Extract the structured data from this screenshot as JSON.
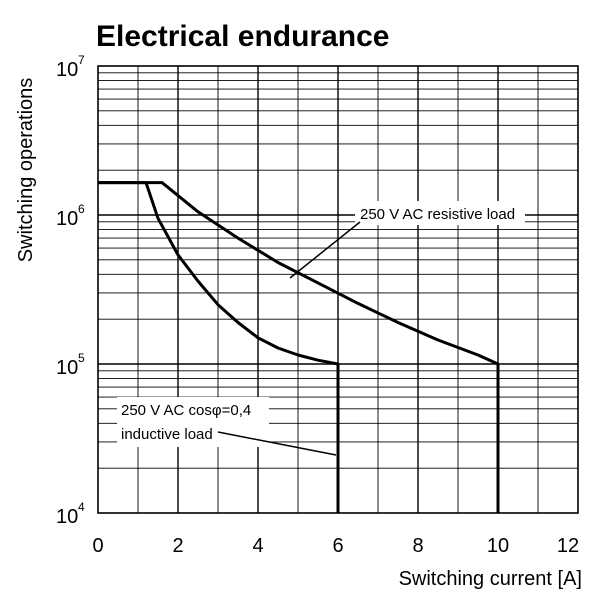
{
  "chart_data": {
    "type": "line",
    "title": "Electrical endurance",
    "xlabel": "Switching current [A]",
    "ylabel": "Switching operations",
    "xlim": [
      0,
      12
    ],
    "ylim": [
      10000,
      10000000
    ],
    "yscale": "log",
    "grid": true,
    "x_ticks": [
      "0",
      "2",
      "4",
      "6",
      "8",
      "10",
      "12"
    ],
    "y_ticks": [
      {
        "base": "10",
        "exp": "4"
      },
      {
        "base": "10",
        "exp": "5"
      },
      {
        "base": "10",
        "exp": "6"
      },
      {
        "base": "10",
        "exp": "7"
      }
    ],
    "series": [
      {
        "name": "250 V AC resistive load",
        "x": [
          0,
          1.6,
          2.5,
          3.5,
          4.5,
          5.5,
          6.5,
          7.5,
          8.5,
          9.5,
          10,
          10
        ],
        "y": [
          1650000,
          1650000,
          1050000,
          700000,
          480000,
          350000,
          255000,
          190000,
          145000,
          115000,
          100000,
          10000
        ]
      },
      {
        "name": "250 V AC cosφ=0,4 inductive load",
        "x": [
          0,
          1.2,
          1.5,
          2,
          2.5,
          3,
          3.5,
          4,
          4.5,
          5,
          5.5,
          6,
          6
        ],
        "y": [
          1650000,
          1650000,
          950000,
          540000,
          360000,
          250000,
          190000,
          150000,
          128000,
          115000,
          106000,
          100000,
          10000
        ]
      }
    ],
    "annotations": [
      {
        "text": "250 V AC resistive load",
        "series": 0
      },
      {
        "line1": "250 V AC cosφ=0,4",
        "line2": "inductive load",
        "series": 1
      }
    ]
  }
}
